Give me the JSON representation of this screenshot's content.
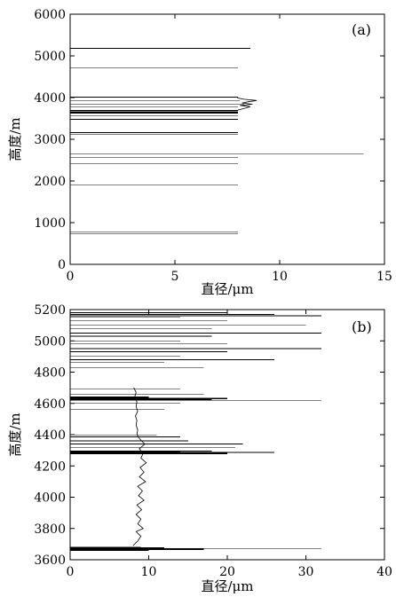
{
  "chart_data": [
    {
      "type": "line",
      "panel_label": "(a)",
      "xlabel": "直径/μm",
      "ylabel": "高度/m",
      "xlim": [
        0,
        15
      ],
      "ylim": [
        0,
        6000
      ],
      "xticks": [
        "0",
        "5",
        "10",
        "15"
      ],
      "yticks": [
        "0",
        "1000",
        "2000",
        "3000",
        "4000",
        "5000",
        "6000"
      ],
      "grid": false,
      "series": [
        {
          "values": [
            [
              0,
              740,
              8.0,
              0.8
            ],
            [
              0,
              780,
              8.0,
              0.8
            ],
            [
              0,
              1900,
              8.0,
              0.6
            ],
            [
              0,
              2420,
              8.0,
              0.7
            ],
            [
              0,
              2560,
              8.0,
              0.7
            ],
            [
              0,
              2640,
              14.0,
              0.6
            ],
            [
              0,
              3110,
              8.0,
              0.7
            ],
            [
              0,
              3160,
              8.0,
              0.7
            ],
            [
              0,
              3480,
              8.0,
              0.8
            ],
            [
              0,
              3560,
              8.0,
              0.8
            ],
            [
              0,
              3630,
              8.0,
              1.3
            ],
            [
              0,
              3660,
              8.0,
              1.3
            ],
            [
              0,
              3690,
              8.0,
              1.1
            ],
            [
              0,
              3780,
              8.0,
              0.7
            ],
            [
              0,
              3850,
              8.3,
              0.6
            ],
            [
              0,
              3920,
              8.1,
              0.6
            ],
            [
              0,
              4010,
              8.0,
              1.0
            ],
            [
              0,
              4720,
              8.0,
              0.6
            ],
            [
              0,
              5180,
              8.6,
              0.8
            ]
          ],
          "profile": [
            [
              8.0,
              3700
            ],
            [
              8.3,
              3740
            ],
            [
              8.6,
              3780
            ],
            [
              8.1,
              3810
            ],
            [
              8.7,
              3840
            ],
            [
              8.2,
              3870
            ],
            [
              8.5,
              3900
            ],
            [
              8.9,
              3930
            ],
            [
              8.3,
              3960
            ],
            [
              8.0,
              3990
            ],
            [
              8.0,
              4010
            ]
          ]
        }
      ]
    },
    {
      "type": "line",
      "panel_label": "(b)",
      "xlabel": "直径/μm",
      "ylabel": "高度/m",
      "xlim": [
        0,
        40
      ],
      "ylim": [
        3600,
        5200
      ],
      "xticks": [
        "0",
        "10",
        "20",
        "30",
        "40"
      ],
      "yticks": [
        "3600",
        "3800",
        "4000",
        "4200",
        "4400",
        "4600",
        "4800",
        "5000",
        "5200"
      ],
      "grid": false,
      "series": [
        {
          "values": [
            [
              0,
              3662,
              10,
              1.6
            ],
            [
              0,
              3668,
              17,
              1.6
            ],
            [
              0,
              3672,
              32,
              0.7
            ],
            [
              0,
              3676,
              12,
              1.4
            ],
            [
              0,
              3680,
              9,
              1.0
            ],
            [
              0,
              4280,
              20,
              1.8
            ],
            [
              0,
              4286,
              26,
              1.2
            ],
            [
              0,
              4290,
              14,
              1.6
            ],
            [
              0,
              4296,
              18,
              1.0
            ],
            [
              0,
              4320,
              21,
              0.7
            ],
            [
              0,
              4340,
              22,
              0.8
            ],
            [
              0,
              4360,
              15,
              0.8
            ],
            [
              0,
              4385,
              14,
              0.8
            ],
            [
              0,
              4398,
              11,
              0.7
            ],
            [
              0,
              4560,
              12,
              0.7
            ],
            [
              0,
              4600,
              14,
              0.9
            ],
            [
              0,
              4620,
              32,
              0.8
            ],
            [
              0,
              4625,
              18,
              1.5
            ],
            [
              0,
              4632,
              20,
              1.6
            ],
            [
              0,
              4640,
              10,
              1.4
            ],
            [
              0,
              4660,
              17,
              0.8
            ],
            [
              0,
              4690,
              14,
              0.7
            ],
            [
              0,
              4830,
              17,
              0.7
            ],
            [
              0,
              4860,
              12,
              0.6
            ],
            [
              0,
              4880,
              26,
              0.7
            ],
            [
              0,
              4900,
              14,
              0.7
            ],
            [
              0,
              4930,
              20,
              0.8
            ],
            [
              0,
              4950,
              32,
              0.8
            ],
            [
              0,
              4980,
              20,
              0.7
            ],
            [
              0,
              5000,
              14,
              0.6
            ],
            [
              0,
              5030,
              18,
              0.7
            ],
            [
              0,
              5050,
              32,
              0.7
            ],
            [
              0,
              5080,
              18,
              0.7
            ],
            [
              0,
              5100,
              30,
              0.7
            ],
            [
              0,
              5130,
              20,
              0.8
            ],
            [
              0,
              5150,
              14,
              0.8
            ],
            [
              0,
              5160,
              32,
              0.8
            ],
            [
              0,
              5170,
              26,
              1.0
            ],
            [
              0,
              5180,
              20,
              0.8
            ]
          ],
          "profile": [
            [
              8.0,
              3690
            ],
            [
              8.6,
              3720
            ],
            [
              9.0,
              3750
            ],
            [
              8.4,
              3780
            ],
            [
              9.3,
              3800
            ],
            [
              8.6,
              3830
            ],
            [
              9.0,
              3860
            ],
            [
              8.4,
              3890
            ],
            [
              9.1,
              3920
            ],
            [
              8.5,
              3950
            ],
            [
              9.4,
              3980
            ],
            [
              8.7,
              4010
            ],
            [
              9.2,
              4040
            ],
            [
              8.6,
              4070
            ],
            [
              9.6,
              4100
            ],
            [
              8.8,
              4130
            ],
            [
              9.4,
              4160
            ],
            [
              8.9,
              4190
            ],
            [
              9.7,
              4220
            ],
            [
              9.0,
              4250
            ],
            [
              9.3,
              4280
            ],
            [
              8.8,
              4310
            ],
            [
              9.5,
              4340
            ],
            [
              8.9,
              4370
            ],
            [
              8.5,
              4400
            ],
            [
              8.6,
              4430
            ],
            [
              8.4,
              4460
            ],
            [
              8.5,
              4490
            ],
            [
              8.3,
              4520
            ],
            [
              8.6,
              4550
            ],
            [
              8.4,
              4580
            ],
            [
              8.5,
              4610
            ],
            [
              8.2,
              4640
            ],
            [
              8.4,
              4670
            ],
            [
              8.1,
              4700
            ]
          ]
        }
      ]
    }
  ]
}
